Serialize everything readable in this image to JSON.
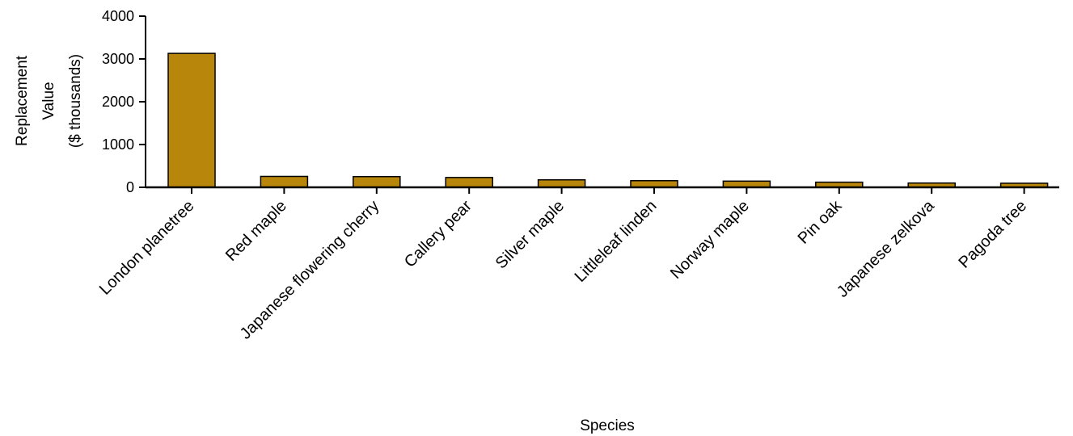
{
  "chart_data": {
    "type": "bar",
    "title": "",
    "xlabel": "Species",
    "ylabel_lines": [
      "Replacement",
      "Value",
      "($ thousands)"
    ],
    "categories": [
      "London planetree",
      "Red maple",
      "Japanese flowering cherry",
      "Callery pear",
      "Silver maple",
      "Littleleaf linden",
      "Norway maple",
      "Pin oak",
      "Japanese zelkova",
      "Pagoda tree"
    ],
    "values": [
      3130,
      255,
      250,
      230,
      175,
      155,
      145,
      120,
      100,
      95
    ],
    "ylim": [
      0,
      4000
    ],
    "yticks": [
      "0",
      "1000",
      "2000",
      "3000",
      "4000"
    ],
    "grid": false,
    "legend": "none",
    "bar_color": "#B8860B",
    "bar_edge_color": "#000000"
  }
}
